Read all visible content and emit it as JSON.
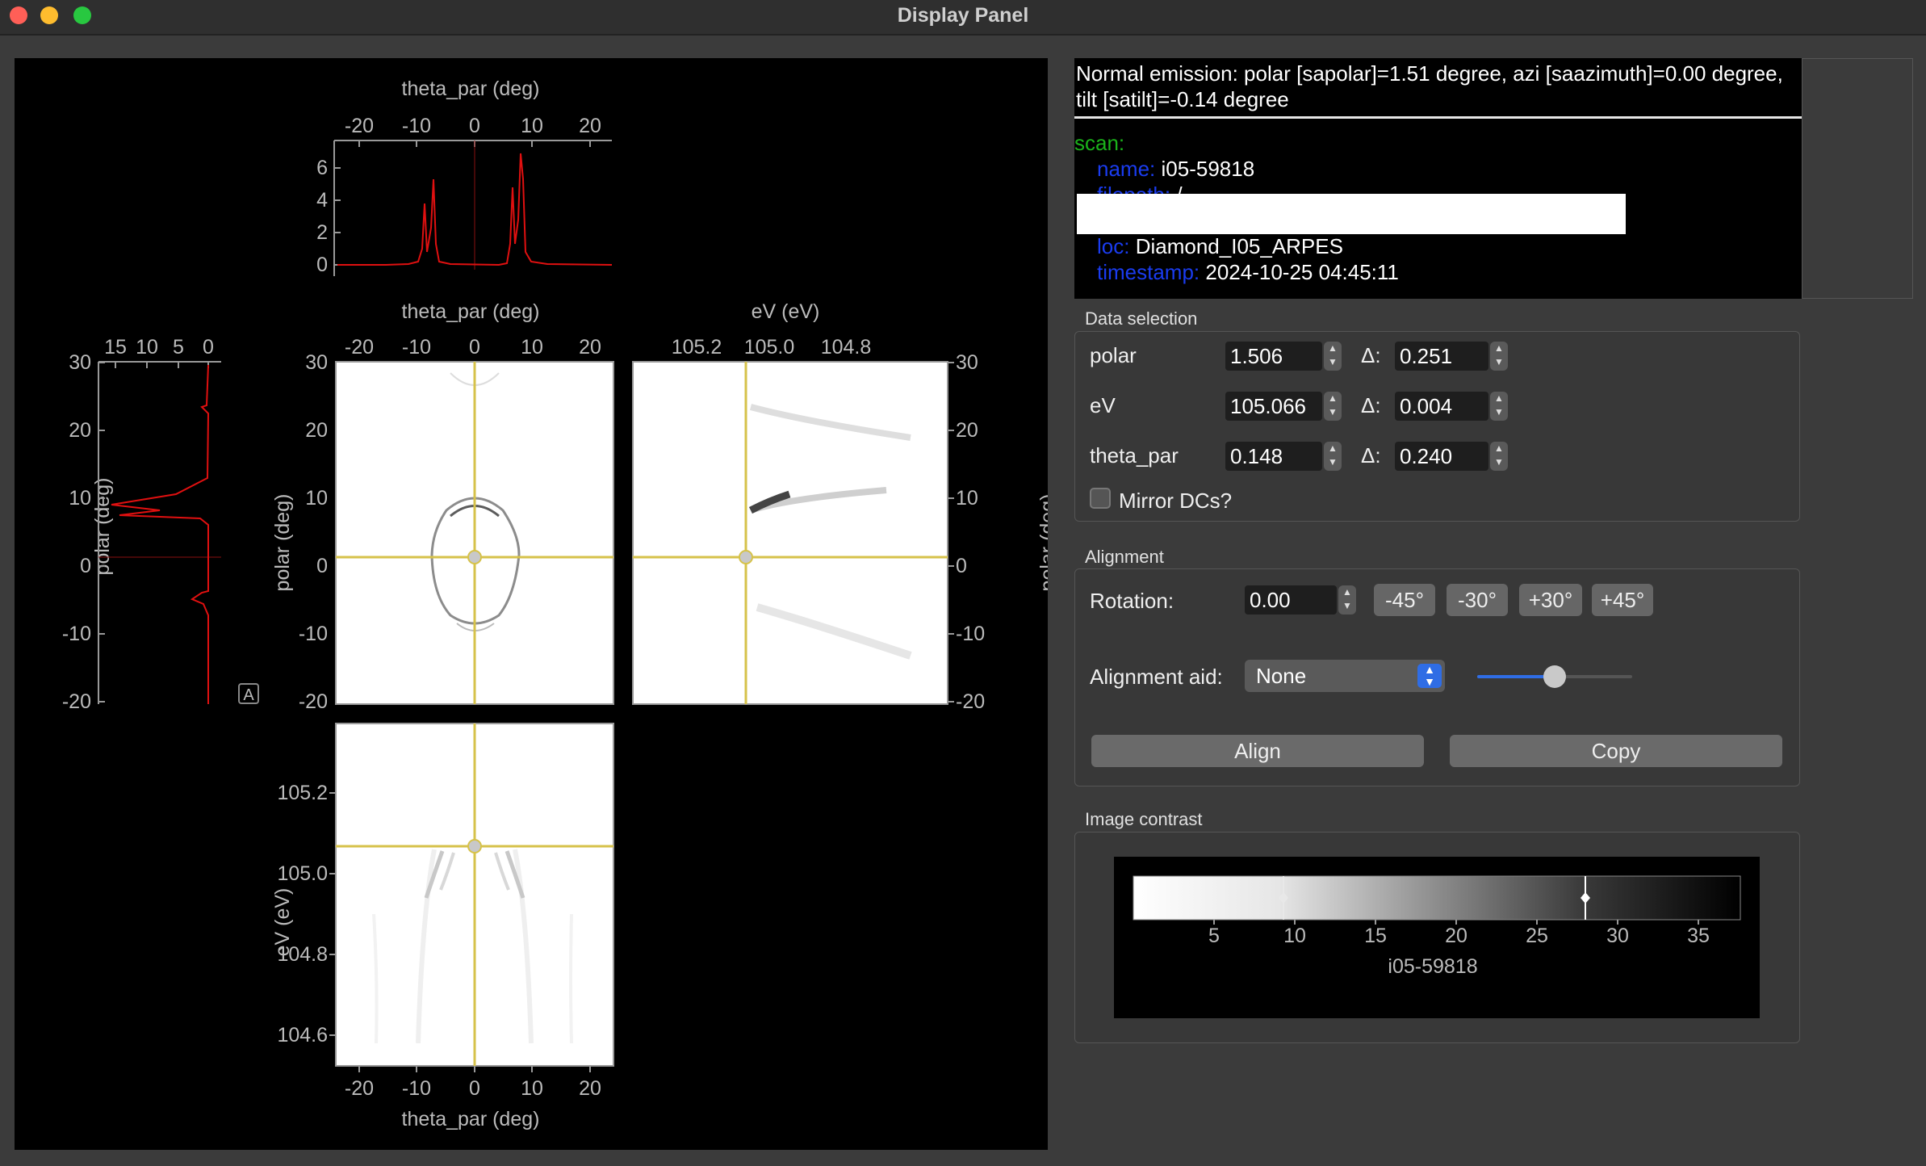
{
  "window": {
    "title": "Display Panel",
    "traffic_lights": [
      "#ff5f57",
      "#febc2e",
      "#28c840"
    ]
  },
  "info": {
    "normal_emission": "Normal emission: polar [sapolar]=1.51 degree, azi [saazimuth]=0.00 degree, tilt [satilt]=-0.14 degree",
    "scan_key": "scan:",
    "name_key": "name:",
    "name_val": "i05-59818",
    "filepath_key": "filepath:",
    "filepath_val": "/",
    "loc_key": "loc:",
    "loc_val": "Diamond_I05_ARPES",
    "timestamp_key": "timestamp:",
    "timestamp_val": "2024-10-25 04:45:11"
  },
  "data_selection": {
    "title": "Data selection",
    "delta_label": "Δ:",
    "rows": [
      {
        "label": "polar",
        "value": "1.506",
        "delta": "0.251"
      },
      {
        "label": "eV",
        "value": "105.066",
        "delta": "0.004"
      },
      {
        "label": "theta_par",
        "value": "0.148",
        "delta": "0.240"
      }
    ],
    "mirror_label": "Mirror DCs?",
    "mirror_checked": false
  },
  "alignment": {
    "title": "Alignment",
    "rotation_label": "Rotation:",
    "rotation_value": "0.00",
    "rot_buttons": [
      "-45°",
      "-30°",
      "+30°",
      "+45°"
    ],
    "aid_label": "Alignment aid:",
    "aid_value": "None",
    "slider_fraction": 0.5,
    "align_label": "Align",
    "copy_label": "Copy"
  },
  "contrast": {
    "title": "Image contrast",
    "ticks": [
      "5",
      "10",
      "15",
      "20",
      "25",
      "30",
      "35"
    ],
    "label": "i05-59818",
    "low_handle": 9.3,
    "high_handle": 28
  },
  "plots": {
    "axis_theta": "theta_par (deg)",
    "axis_ev": "eV (eV)",
    "axis_polar": "polar (deg)",
    "axis_ev_left": "eV (eV)",
    "theta_ticks": [
      "-20",
      "-10",
      "0",
      "10",
      "20"
    ],
    "ev_ticks_top": [
      "105.2",
      "105.0",
      "104.8"
    ],
    "polar_ticks": [
      "30",
      "20",
      "10",
      "0",
      "-10",
      "-20"
    ],
    "ev_ticks_left": [
      "105.2",
      "105.0",
      "104.8",
      "104.6"
    ],
    "edc_y_ticks": [
      "6",
      "4",
      "2",
      "0"
    ],
    "mdc_x_ticks": [
      "15",
      "10",
      "5",
      "0"
    ],
    "auto_button": "A",
    "cursor": {
      "theta": 0.148,
      "polar": 1.506,
      "ev": 105.066
    },
    "colors": {
      "line": "#e01010",
      "cursor": "#d6c24a"
    }
  }
}
